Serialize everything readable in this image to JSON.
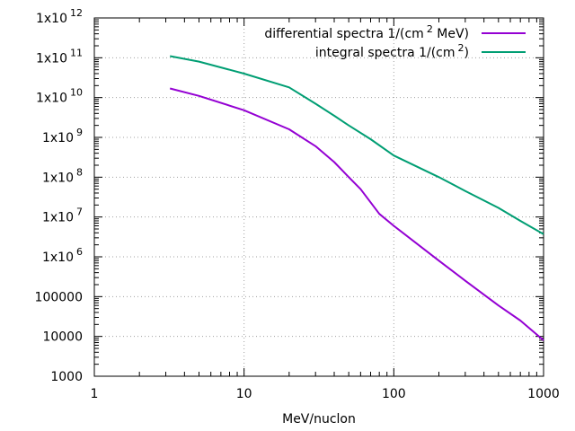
{
  "chart_data": {
    "type": "line",
    "xlabel": "MeV/nuclon",
    "ylabel": "",
    "x_scale": "log",
    "y_scale": "log",
    "xlim": [
      1,
      1000
    ],
    "ylim": [
      1000,
      1000000000000
    ],
    "grid": true,
    "legend_position": "top-right",
    "x_ticks": [
      {
        "value": 1,
        "label": "1"
      },
      {
        "value": 10,
        "label": "10"
      },
      {
        "value": 100,
        "label": "100"
      },
      {
        "value": 1000,
        "label": "1000"
      }
    ],
    "y_ticks": [
      {
        "value": 1000,
        "mant": "1000",
        "exp": ""
      },
      {
        "value": 10000,
        "mant": "10000",
        "exp": ""
      },
      {
        "value": 100000,
        "mant": "100000",
        "exp": ""
      },
      {
        "value": 1000000,
        "mant": "1x10",
        "exp": "6"
      },
      {
        "value": 10000000,
        "mant": "1x10",
        "exp": "7"
      },
      {
        "value": 100000000,
        "mant": "1x10",
        "exp": "8"
      },
      {
        "value": 1000000000,
        "mant": "1x10",
        "exp": "9"
      },
      {
        "value": 10000000000,
        "mant": "1x10",
        "exp": "10"
      },
      {
        "value": 100000000000,
        "mant": "1x10",
        "exp": "11"
      },
      {
        "value": 1000000000000,
        "mant": "1x10",
        "exp": "12"
      }
    ],
    "series": [
      {
        "name_parts": [
          "differential spectra 1/(cm",
          "2",
          " MeV)"
        ],
        "color": "#9400d3",
        "x": [
          3.2,
          5,
          10,
          20,
          30,
          40,
          50,
          60,
          80,
          100,
          200,
          300,
          500,
          700,
          1000
        ],
        "y": [
          17000000000,
          11000000000,
          4800000000,
          1600000000,
          600000000,
          240000000,
          100000000,
          50000000,
          12000000,
          6000000,
          800000,
          250000,
          60000,
          25000,
          8000
        ]
      },
      {
        "name_parts": [
          "integral spectra 1/(cm",
          "2",
          ")"
        ],
        "color": "#009e73",
        "x": [
          3.2,
          5,
          10,
          20,
          30,
          40,
          50,
          70,
          100,
          200,
          300,
          500,
          700,
          1000
        ],
        "y": [
          110000000000,
          80000000000,
          40000000000,
          18000000000,
          7000000000,
          3500000000,
          2000000000,
          900000000,
          350000000,
          100000000,
          45000000,
          17000000,
          8000000,
          3700000
        ]
      }
    ]
  }
}
